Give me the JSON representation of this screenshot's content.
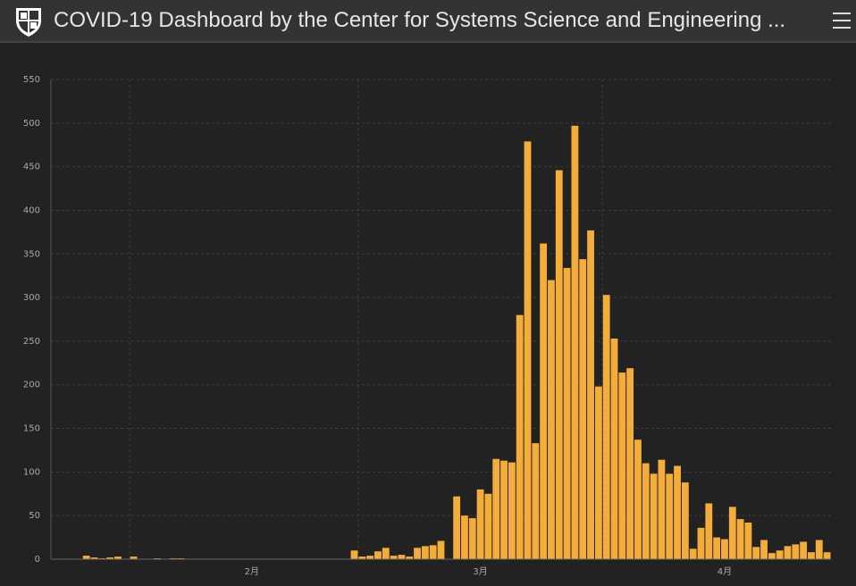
{
  "header": {
    "title": "COVID-19 Dashboard by the Center for Systems Science and Engineering ..."
  },
  "chart_data": {
    "type": "bar",
    "color": "#f4ad3a",
    "grid": true,
    "categories": [
      null,
      null,
      null,
      null,
      null,
      null,
      null,
      null,
      null,
      null,
      null,
      null,
      null,
      null,
      null,
      null,
      null,
      null,
      null,
      null,
      null,
      null,
      null,
      null,
      null,
      "2月",
      null,
      null,
      null,
      null,
      null,
      null,
      null,
      null,
      null,
      null,
      null,
      null,
      null,
      null,
      null,
      null,
      null,
      null,
      null,
      null,
      null,
      null,
      null,
      null,
      null,
      null,
      null,
      null,
      "3月",
      null,
      null,
      null,
      null,
      null,
      null,
      null,
      null,
      null,
      null,
      null,
      null,
      null,
      null,
      null,
      null,
      null,
      null,
      null,
      null,
      null,
      null,
      null,
      null,
      null,
      null,
      null,
      null,
      null,
      null,
      "4月",
      null,
      null,
      null,
      null,
      null,
      null,
      null,
      null,
      null,
      null,
      null,
      null,
      null
    ],
    "values": [
      0,
      0,
      0,
      0,
      4,
      2,
      1,
      2,
      3,
      0,
      3,
      0,
      0,
      1,
      0,
      1,
      1,
      0,
      0,
      0,
      0,
      0,
      0,
      0,
      0,
      0,
      0,
      0,
      0,
      0,
      0,
      0,
      0,
      0,
      0,
      0,
      0,
      0,
      10,
      3,
      4,
      9,
      13,
      4,
      5,
      3,
      13,
      15,
      16,
      21,
      0,
      72,
      50,
      47,
      80,
      75,
      115,
      113,
      111,
      280,
      479,
      133,
      362,
      320,
      446,
      334,
      497,
      344,
      377,
      198,
      303,
      253,
      214,
      219,
      137,
      110,
      98,
      114,
      98,
      107,
      88,
      12,
      36,
      64,
      25,
      23,
      60,
      46,
      42,
      14,
      22,
      7,
      10,
      15,
      17,
      20,
      8,
      22,
      8
    ],
    "ylim": [
      0,
      550
    ],
    "yticks": [
      0,
      50,
      100,
      150,
      200,
      250,
      300,
      350,
      400,
      450,
      500,
      550
    ]
  }
}
